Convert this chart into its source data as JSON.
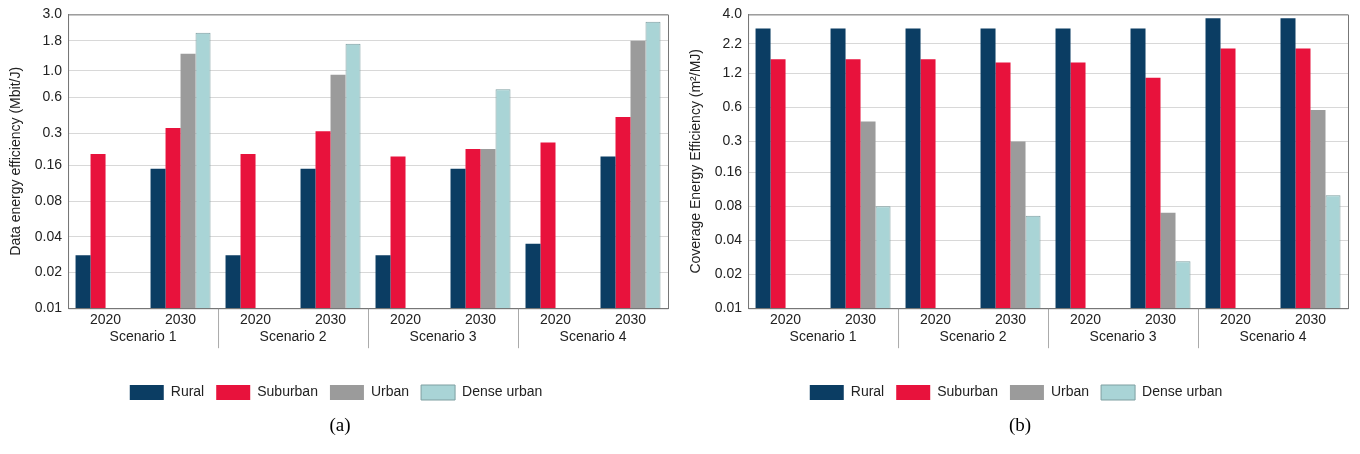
{
  "chart_data": [
    {
      "type": "bar",
      "subtitle": "(a)",
      "ylabel": "Data energy efficiency (Mbit/J)",
      "categories": [
        "2020",
        "2030",
        "2020",
        "2030",
        "2020",
        "2030",
        "2020",
        "2030"
      ],
      "annotations": [
        "Scenario 1",
        "Scenario 2",
        "Scenario 3",
        "Scenario 4"
      ],
      "series": [
        {
          "name": "Rural",
          "color": "#0b3d63",
          "values": [
            0.028,
            0.15,
            0.028,
            0.15,
            0.028,
            0.15,
            0.035,
            0.19
          ]
        },
        {
          "name": "Suburban",
          "color": "#e8123c",
          "values": [
            0.2,
            0.33,
            0.2,
            0.31,
            0.19,
            0.22,
            0.25,
            0.41
          ]
        },
        {
          "name": "Urban",
          "color": "#9b9b9b",
          "values": [
            null,
            1.4,
            null,
            0.93,
            null,
            0.22,
            null,
            1.8
          ]
        },
        {
          "name": "Dense urban",
          "color": "#a9d4d6",
          "values": [
            null,
            2.1,
            null,
            1.7,
            null,
            0.7,
            null,
            2.6
          ]
        }
      ],
      "log": "y",
      "ylim": [
        0.01,
        3
      ],
      "yticks": [
        0.01,
        0.02,
        0.04,
        0.08,
        0.16,
        0.3,
        0.6,
        {
          "value": 1,
          "label": "1.0"
        },
        1.8,
        {
          "value": 3,
          "label": "3.0"
        }
      ],
      "grid": "y",
      "legend": "bottom"
    },
    {
      "type": "bar",
      "subtitle": "(b)",
      "ylabel": "Coverage Energy Efficiency (m²/MJ)",
      "categories": [
        "2020",
        "2030",
        "2020",
        "2030",
        "2020",
        "2030",
        "2020",
        "2030"
      ],
      "annotations": [
        "Scenario 1",
        "Scenario 2",
        "Scenario 3",
        "Scenario 4"
      ],
      "series": [
        {
          "name": "Rural",
          "color": "#0b3d63",
          "values": [
            3.0,
            3.0,
            3.0,
            3.0,
            3.0,
            3.0,
            3.7,
            3.7
          ]
        },
        {
          "name": "Suburban",
          "color": "#e8123c",
          "values": [
            1.6,
            1.6,
            1.6,
            1.5,
            1.5,
            1.1,
            2.0,
            2.0
          ]
        },
        {
          "name": "Urban",
          "color": "#9b9b9b",
          "values": [
            null,
            0.45,
            null,
            0.3,
            null,
            0.07,
            null,
            0.57
          ]
        },
        {
          "name": "Dense urban",
          "color": "#a9d4d6",
          "values": [
            null,
            0.08,
            null,
            0.066,
            null,
            0.026,
            null,
            0.1
          ]
        }
      ],
      "log": "y",
      "ylim": [
        0.01,
        4
      ],
      "yticks": [
        0.01,
        0.02,
        0.04,
        0.08,
        0.16,
        0.3,
        0.6,
        1.2,
        2.2,
        {
          "value": 4,
          "label": "4.0"
        }
      ],
      "grid": "y",
      "legend": "bottom"
    }
  ]
}
